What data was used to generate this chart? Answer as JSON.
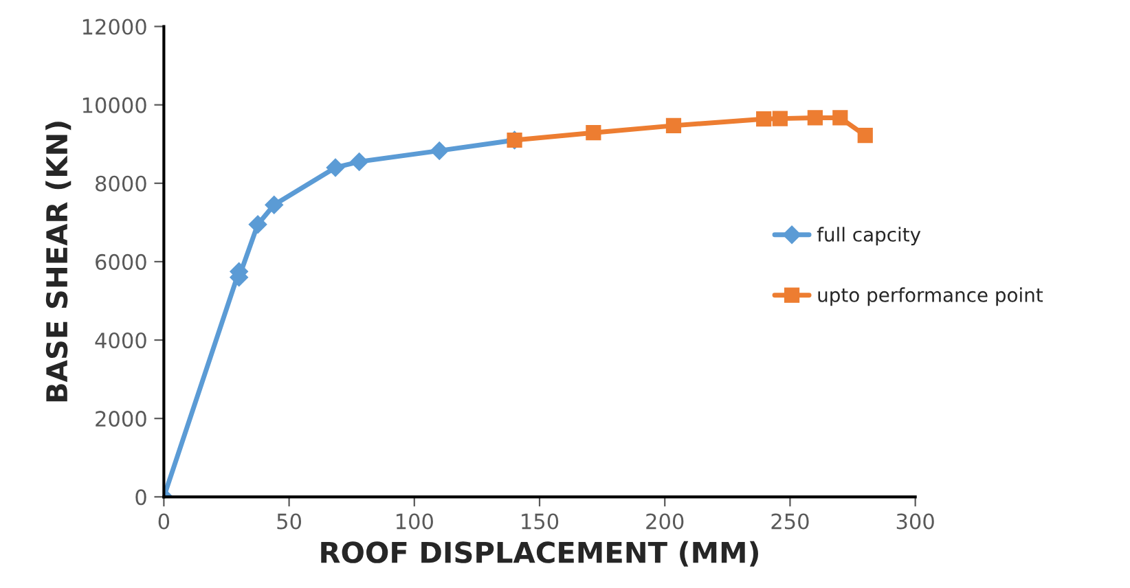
{
  "chart_data": {
    "type": "line",
    "xlabel": "ROOF DISPLACEMENT (MM)",
    "ylabel": "BASE SHEAR (KN)",
    "xlim": [
      0,
      300
    ],
    "xticks": [
      0,
      50,
      100,
      150,
      200,
      250,
      300
    ],
    "ylim": [
      0,
      12000
    ],
    "yticks": [
      0,
      2000,
      4000,
      6000,
      8000,
      10000,
      12000
    ],
    "grid": false,
    "legend": "right",
    "series": [
      {
        "name": "full capcity",
        "color": "#5b9bd5",
        "marker": "diamond",
        "x": [
          0,
          30,
          30,
          37.5,
          44,
          68.5,
          78,
          110,
          140
        ],
        "values": [
          0,
          5750,
          5600,
          6950,
          7450,
          8400,
          8550,
          8830,
          9100
        ]
      },
      {
        "name": "upto performance point",
        "color": "#ed7d31",
        "marker": "square",
        "x": [
          140,
          171.5,
          203.5,
          239.5,
          246,
          260,
          270,
          280
        ],
        "values": [
          9100,
          9290,
          9470,
          9640,
          9650,
          9670,
          9670,
          9220
        ]
      }
    ]
  }
}
